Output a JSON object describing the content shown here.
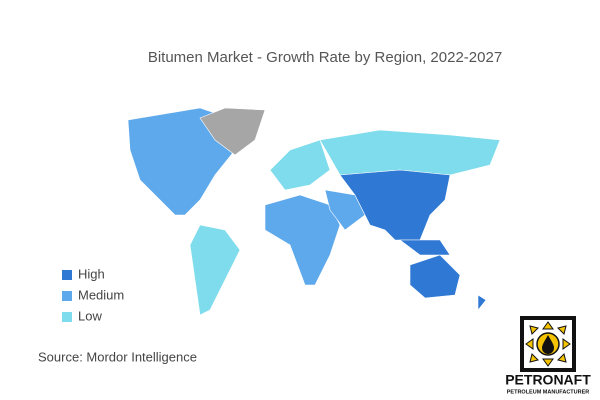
{
  "chart_data": {
    "type": "choropleth",
    "title": "Bitumen Market - Growth Rate by Region, 2022-2027",
    "legend": [
      {
        "name": "High",
        "color": "#2f78d4"
      },
      {
        "name": "Medium",
        "color": "#5ea8ec"
      },
      {
        "name": "Low",
        "color": "#7fdcec"
      }
    ],
    "no_data_color": "#a6a6a6",
    "source": "Source:  Mordor Intelligence"
  },
  "logo": {
    "name": "PETRONAFT",
    "tagline": "PETROLEUM MANUFACTURER"
  }
}
